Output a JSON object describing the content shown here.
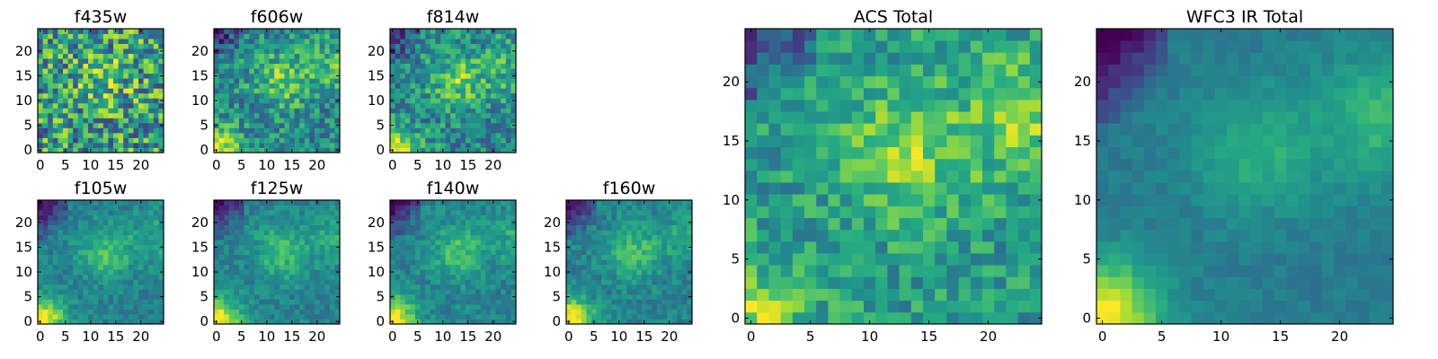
{
  "chart_data": [
    {
      "type": "heatmap",
      "title": "f435w",
      "xticks": [
        "0",
        "5",
        "10",
        "15",
        "20"
      ],
      "yticks": [
        "0",
        "5",
        "10",
        "15",
        "20"
      ],
      "xlim": [
        -0.5,
        24.5
      ],
      "ylim": [
        -0.5,
        24.5
      ],
      "colormap": "viridis",
      "pattern": "noise",
      "grid": false
    },
    {
      "type": "heatmap",
      "title": "f606w",
      "xticks": [
        "0",
        "5",
        "10",
        "15",
        "20"
      ],
      "yticks": [
        "0",
        "5",
        "10",
        "15",
        "20"
      ],
      "xlim": [
        -0.5,
        24.5
      ],
      "ylim": [
        -0.5,
        24.5
      ],
      "colormap": "viridis",
      "pattern": "optical",
      "grid": false
    },
    {
      "type": "heatmap",
      "title": "f814w",
      "xticks": [
        "0",
        "5",
        "10",
        "15",
        "20"
      ],
      "yticks": [
        "0",
        "5",
        "10",
        "15",
        "20"
      ],
      "xlim": [
        -0.5,
        24.5
      ],
      "ylim": [
        -0.5,
        24.5
      ],
      "colormap": "viridis",
      "pattern": "optical",
      "grid": false
    },
    {
      "type": "heatmap",
      "title": "f105w",
      "xticks": [
        "0",
        "5",
        "10",
        "15",
        "20"
      ],
      "yticks": [
        "0",
        "5",
        "10",
        "15",
        "20"
      ],
      "xlim": [
        -0.5,
        24.5
      ],
      "ylim": [
        -0.5,
        24.5
      ],
      "colormap": "viridis",
      "pattern": "ir",
      "grid": false
    },
    {
      "type": "heatmap",
      "title": "f125w",
      "xticks": [
        "0",
        "5",
        "10",
        "15",
        "20"
      ],
      "yticks": [
        "0",
        "5",
        "10",
        "15",
        "20"
      ],
      "xlim": [
        -0.5,
        24.5
      ],
      "ylim": [
        -0.5,
        24.5
      ],
      "colormap": "viridis",
      "pattern": "ir",
      "grid": false
    },
    {
      "type": "heatmap",
      "title": "f140w",
      "xticks": [
        "0",
        "5",
        "10",
        "15",
        "20"
      ],
      "yticks": [
        "0",
        "5",
        "10",
        "15",
        "20"
      ],
      "xlim": [
        -0.5,
        24.5
      ],
      "ylim": [
        -0.5,
        24.5
      ],
      "colormap": "viridis",
      "pattern": "ir",
      "grid": false
    },
    {
      "type": "heatmap",
      "title": "f160w",
      "xticks": [
        "0",
        "5",
        "10",
        "15",
        "20"
      ],
      "yticks": [
        "0",
        "5",
        "10",
        "15",
        "20"
      ],
      "xlim": [
        -0.5,
        24.5
      ],
      "ylim": [
        -0.5,
        24.5
      ],
      "colormap": "viridis",
      "pattern": "ir",
      "grid": false
    },
    {
      "type": "heatmap",
      "title": "ACS Total",
      "xticks": [
        "0",
        "5",
        "10",
        "15",
        "20"
      ],
      "yticks": [
        "0",
        "5",
        "10",
        "15",
        "20"
      ],
      "xlim": [
        -0.5,
        24.5
      ],
      "ylim": [
        -0.5,
        24.5
      ],
      "colormap": "viridis",
      "pattern": "acs",
      "grid": false
    },
    {
      "type": "heatmap",
      "title": "WFC3 IR Total",
      "xticks": [
        "0",
        "5",
        "10",
        "15",
        "20"
      ],
      "yticks": [
        "0",
        "5",
        "10",
        "15",
        "20"
      ],
      "xlim": [
        -0.5,
        24.5
      ],
      "ylim": [
        -0.5,
        24.5
      ],
      "colormap": "viridis",
      "pattern": "ir_total",
      "grid": false
    }
  ]
}
